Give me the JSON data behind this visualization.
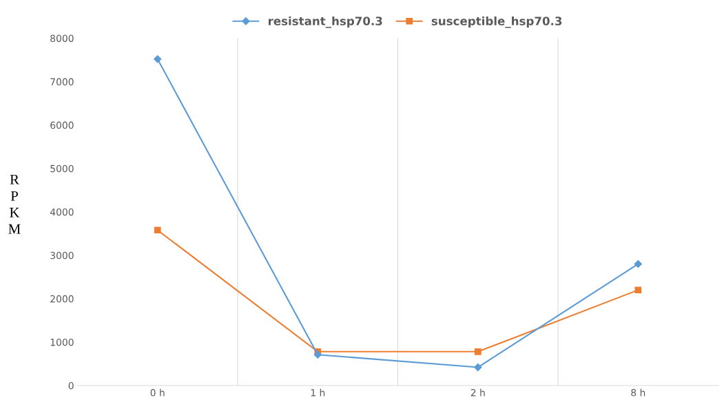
{
  "chart_data": {
    "type": "line",
    "ylabel": "R\nP\nK\nM",
    "categories": [
      "0 h",
      "1 h",
      "2 h",
      "8 h"
    ],
    "series": [
      {
        "name": "resistant_hsp70.3",
        "color": "#5b9bd5",
        "marker": "diamond",
        "values": [
          7520,
          710,
          420,
          2800
        ]
      },
      {
        "name": "susceptible_hsp70.3",
        "color": "#ed7d31",
        "marker": "square",
        "values": [
          3580,
          780,
          780,
          2200
        ]
      }
    ],
    "ylim": [
      0,
      8000
    ],
    "yticks": [
      0,
      1000,
      2000,
      3000,
      4000,
      5000,
      6000,
      7000,
      8000
    ],
    "grid": "x",
    "legend": "top",
    "line_style": "solid"
  }
}
